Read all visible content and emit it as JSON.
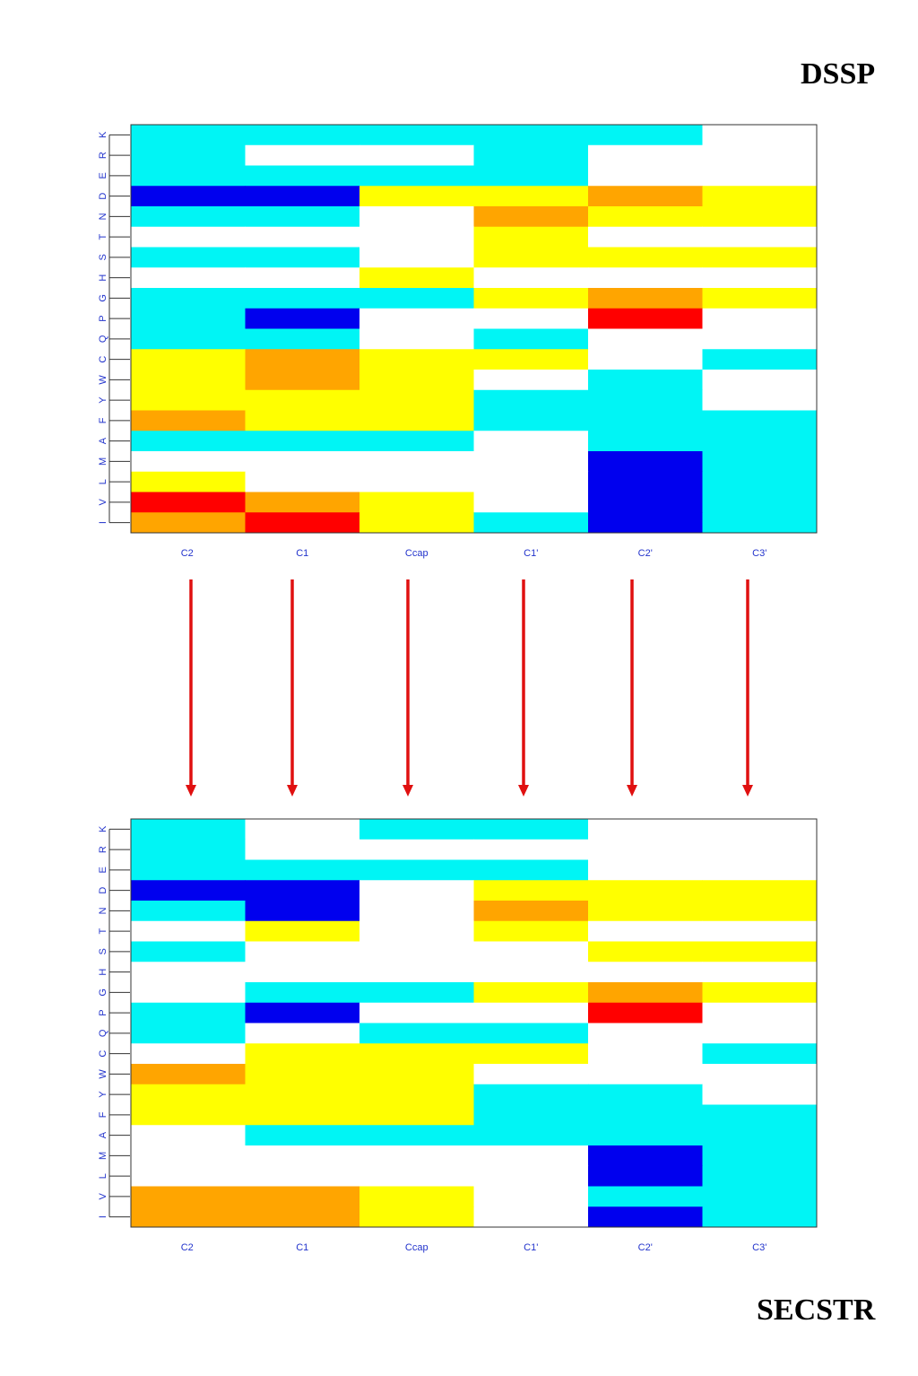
{
  "labels": {
    "top": "DSSP",
    "bottom": "SECSTR"
  },
  "colors": {
    "W": "#ffffff",
    "C": "#00f5f5",
    "B": "#0000ee",
    "Y": "#ffff00",
    "O": "#ffa500",
    "R": "#ff0000",
    "arrow": "#e01010",
    "tick_text": "#2233cc"
  },
  "chart_data": [
    {
      "type": "heatmap",
      "name": "DSSP",
      "columns": [
        "C2",
        "C1",
        "Ccap",
        "C1'",
        "C2'",
        "C3'"
      ],
      "rows": [
        "K",
        "R",
        "E",
        "D",
        "N",
        "T",
        "S",
        "H",
        "G",
        "P",
        "Q",
        "C",
        "W",
        "Y",
        "F",
        "A",
        "M",
        "L",
        "V",
        "I"
      ],
      "cells": [
        [
          "C",
          "C",
          "C",
          "C",
          "C",
          "W"
        ],
        [
          "C",
          "W",
          "W",
          "C",
          "W",
          "W"
        ],
        [
          "C",
          "C",
          "C",
          "C",
          "W",
          "W"
        ],
        [
          "B",
          "B",
          "Y",
          "Y",
          "O",
          "Y"
        ],
        [
          "C",
          "C",
          "W",
          "O",
          "Y",
          "Y"
        ],
        [
          "W",
          "W",
          "W",
          "Y",
          "W",
          "W"
        ],
        [
          "C",
          "C",
          "W",
          "Y",
          "Y",
          "Y"
        ],
        [
          "W",
          "W",
          "Y",
          "W",
          "W",
          "W"
        ],
        [
          "C",
          "C",
          "C",
          "Y",
          "O",
          "Y"
        ],
        [
          "C",
          "B",
          "W",
          "W",
          "R",
          "W"
        ],
        [
          "C",
          "C",
          "W",
          "C",
          "W",
          "W"
        ],
        [
          "Y",
          "O",
          "Y",
          "Y",
          "W",
          "C"
        ],
        [
          "Y",
          "O",
          "Y",
          "W",
          "C",
          "W"
        ],
        [
          "Y",
          "Y",
          "Y",
          "C",
          "C",
          "W"
        ],
        [
          "O",
          "Y",
          "Y",
          "C",
          "C",
          "C"
        ],
        [
          "C",
          "C",
          "C",
          "W",
          "C",
          "C"
        ],
        [
          "W",
          "W",
          "W",
          "W",
          "B",
          "C"
        ],
        [
          "Y",
          "W",
          "W",
          "W",
          "B",
          "C"
        ],
        [
          "R",
          "O",
          "Y",
          "W",
          "B",
          "C"
        ],
        [
          "O",
          "R",
          "Y",
          "C",
          "B",
          "C"
        ]
      ]
    },
    {
      "type": "heatmap",
      "name": "SECSTR",
      "columns": [
        "C2",
        "C1",
        "Ccap",
        "C1'",
        "C2'",
        "C3'"
      ],
      "rows": [
        "K",
        "R",
        "E",
        "D",
        "N",
        "T",
        "S",
        "H",
        "G",
        "P",
        "Q",
        "C",
        "W",
        "Y",
        "F",
        "A",
        "M",
        "L",
        "V",
        "I"
      ],
      "cells": [
        [
          "C",
          "W",
          "C",
          "C",
          "W",
          "W"
        ],
        [
          "C",
          "W",
          "W",
          "W",
          "W",
          "W"
        ],
        [
          "C",
          "C",
          "C",
          "C",
          "W",
          "W"
        ],
        [
          "B",
          "B",
          "W",
          "Y",
          "Y",
          "Y"
        ],
        [
          "C",
          "B",
          "W",
          "O",
          "Y",
          "Y"
        ],
        [
          "W",
          "Y",
          "W",
          "Y",
          "W",
          "W"
        ],
        [
          "C",
          "W",
          "W",
          "W",
          "Y",
          "Y"
        ],
        [
          "W",
          "W",
          "W",
          "W",
          "W",
          "W"
        ],
        [
          "W",
          "C",
          "C",
          "Y",
          "O",
          "Y"
        ],
        [
          "C",
          "B",
          "W",
          "W",
          "R",
          "W"
        ],
        [
          "C",
          "W",
          "C",
          "C",
          "W",
          "W"
        ],
        [
          "W",
          "Y",
          "Y",
          "Y",
          "W",
          "C"
        ],
        [
          "O",
          "Y",
          "Y",
          "W",
          "W",
          "W"
        ],
        [
          "Y",
          "Y",
          "Y",
          "C",
          "C",
          "W"
        ],
        [
          "Y",
          "Y",
          "Y",
          "C",
          "C",
          "C"
        ],
        [
          "W",
          "C",
          "C",
          "C",
          "C",
          "C"
        ],
        [
          "W",
          "W",
          "W",
          "W",
          "B",
          "C"
        ],
        [
          "W",
          "W",
          "W",
          "W",
          "B",
          "C"
        ],
        [
          "O",
          "O",
          "Y",
          "W",
          "C",
          "C"
        ],
        [
          "O",
          "O",
          "Y",
          "W",
          "B",
          "C"
        ]
      ]
    }
  ]
}
